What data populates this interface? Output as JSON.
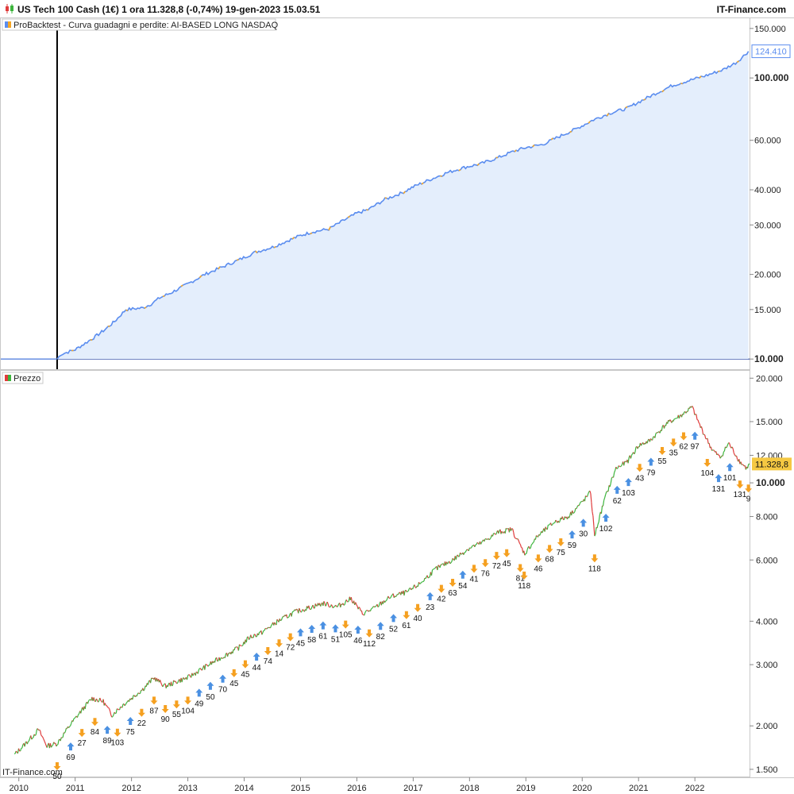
{
  "header": {
    "title": "US Tech 100 Cash (1€) 1 ora 11.328,8 (-0,74%) 19-gen-2023 15.03.51",
    "brand": "IT-Finance.com",
    "icon": "candlestick-icon"
  },
  "watermark": "IT-Finance.com",
  "colors": {
    "equity_line": "#5b8def",
    "equity_line_alt": "#f5a623",
    "equity_fill": "#e4eefc",
    "baseline": "#1f3fa0",
    "price_up": "#3db53d",
    "price_down": "#e03c3c",
    "buy_marker": "#4a90e2",
    "sell_marker": "#f5a020",
    "last_price_badge": "#f5c842"
  },
  "chart_data": [
    {
      "type": "area",
      "legend": "ProBacktest - Curva guadagni e perdite: AI-BASED LONG NASDAQ",
      "yscale": "log",
      "ylim": [
        9200,
        162000
      ],
      "y_ticks": [
        {
          "value": 150000,
          "label": "150.000",
          "bold": false
        },
        {
          "value": 100000,
          "label": "100.000",
          "bold": true
        },
        {
          "value": 60000,
          "label": "60.000",
          "bold": false
        },
        {
          "value": 40000,
          "label": "40.000",
          "bold": false
        },
        {
          "value": 30000,
          "label": "30.000",
          "bold": false
        },
        {
          "value": 20000,
          "label": "20.000",
          "bold": false
        },
        {
          "value": 15000,
          "label": "15.000",
          "bold": false
        },
        {
          "value": 10000,
          "label": "10.000",
          "bold": true
        }
      ],
      "last_value": {
        "value": 124410,
        "label": "124.410"
      },
      "baseline": 10000,
      "start_marker": 2010.68,
      "x": [
        2009.9,
        2010.68,
        2010.75,
        2011.0,
        2011.3,
        2011.5,
        2011.7,
        2011.9,
        2012.2,
        2012.35,
        2012.5,
        2012.7,
        2013.0,
        2013.3,
        2013.6,
        2013.9,
        2014.2,
        2014.5,
        2014.8,
        2015.0,
        2015.2,
        2015.5,
        2015.75,
        2016.0,
        2016.2,
        2016.5,
        2016.8,
        2017.0,
        2017.3,
        2017.6,
        2017.9,
        2018.2,
        2018.5,
        2018.8,
        2019.0,
        2019.3,
        2019.6,
        2019.9,
        2020.2,
        2020.5,
        2020.8,
        2021.0,
        2021.3,
        2021.6,
        2021.9,
        2022.2,
        2022.5,
        2022.75,
        2022.95
      ],
      "y": [
        10000,
        10000,
        10400,
        10800,
        11800,
        12600,
        13600,
        15000,
        15200,
        15700,
        16500,
        17200,
        18500,
        20000,
        21200,
        22500,
        24000,
        25000,
        26500,
        27500,
        28300,
        29000,
        31000,
        33000,
        34000,
        37000,
        39000,
        41000,
        43500,
        46000,
        48000,
        49500,
        52000,
        55000,
        56500,
        58000,
        62000,
        66000,
        71000,
        75000,
        78000,
        82000,
        88000,
        94000,
        98000,
        102000,
        107000,
        114000,
        124410
      ]
    },
    {
      "type": "line",
      "legend": "Prezzo",
      "yscale": "log",
      "ylim": [
        1430,
        21000
      ],
      "y_ticks": [
        {
          "value": 20000,
          "label": "20.000",
          "bold": false
        },
        {
          "value": 15000,
          "label": "15.000",
          "bold": false
        },
        {
          "value": 12000,
          "label": "12.000",
          "bold": false
        },
        {
          "value": 10000,
          "label": "10.000",
          "bold": true
        },
        {
          "value": 8000,
          "label": "8.000",
          "bold": false
        },
        {
          "value": 6000,
          "label": "6.000",
          "bold": false
        },
        {
          "value": 4000,
          "label": "4.000",
          "bold": false
        },
        {
          "value": 3000,
          "label": "3.000",
          "bold": false
        },
        {
          "value": 2000,
          "label": "2.000",
          "bold": false
        },
        {
          "value": 1500,
          "label": "1.500",
          "bold": false
        }
      ],
      "last_value": {
        "value": 11328.8,
        "label": "11.328,8"
      },
      "x": [
        2009.92,
        2010.15,
        2010.35,
        2010.5,
        2010.68,
        2010.9,
        2011.1,
        2011.3,
        2011.5,
        2011.65,
        2011.85,
        2012.2,
        2012.4,
        2012.6,
        2012.85,
        2013.0,
        2013.3,
        2013.6,
        2013.9,
        2014.1,
        2014.3,
        2014.6,
        2014.9,
        2015.1,
        2015.4,
        2015.65,
        2015.9,
        2016.1,
        2016.3,
        2016.6,
        2016.9,
        2017.1,
        2017.4,
        2017.7,
        2018.0,
        2018.2,
        2018.5,
        2018.75,
        2018.98,
        2019.2,
        2019.5,
        2019.75,
        2020.0,
        2020.15,
        2020.22,
        2020.4,
        2020.6,
        2020.8,
        2021.0,
        2021.2,
        2021.5,
        2021.75,
        2021.95,
        2022.1,
        2022.3,
        2022.45,
        2022.6,
        2022.8,
        2022.92,
        2022.97
      ],
      "y": [
        1650,
        1800,
        1950,
        1750,
        1780,
        2000,
        2200,
        2400,
        2350,
        2150,
        2300,
        2550,
        2750,
        2600,
        2700,
        2750,
        2950,
        3150,
        3350,
        3600,
        3700,
        4000,
        4250,
        4350,
        4500,
        4400,
        4650,
        4200,
        4350,
        4700,
        4850,
        5100,
        5650,
        6000,
        6500,
        6700,
        7200,
        7350,
        6250,
        7000,
        7700,
        8000,
        8800,
        9400,
        7050,
        9000,
        11000,
        11500,
        12800,
        13200,
        14800,
        15600,
        16500,
        14500,
        12500,
        11800,
        13000,
        11500,
        11000,
        11328.8
      ],
      "signals": [
        {
          "x": 2010.68,
          "dir": "sell",
          "label": "50"
        },
        {
          "x": 2010.92,
          "dir": "buy",
          "label": "69"
        },
        {
          "x": 2011.12,
          "dir": "sell",
          "label": "27"
        },
        {
          "x": 2011.35,
          "dir": "sell",
          "label": "84"
        },
        {
          "x": 2011.57,
          "dir": "buy",
          "label": "89"
        },
        {
          "x": 2011.75,
          "dir": "sell",
          "label": "103"
        },
        {
          "x": 2011.98,
          "dir": "buy",
          "label": "75"
        },
        {
          "x": 2012.18,
          "dir": "sell",
          "label": "22"
        },
        {
          "x": 2012.4,
          "dir": "sell",
          "label": "87"
        },
        {
          "x": 2012.6,
          "dir": "sell",
          "label": "90"
        },
        {
          "x": 2012.8,
          "dir": "sell",
          "label": "55"
        },
        {
          "x": 2013.0,
          "dir": "sell",
          "label": "104"
        },
        {
          "x": 2013.2,
          "dir": "buy",
          "label": "49"
        },
        {
          "x": 2013.4,
          "dir": "buy",
          "label": "50"
        },
        {
          "x": 2013.62,
          "dir": "buy",
          "label": "70"
        },
        {
          "x": 2013.82,
          "dir": "sell",
          "label": "45"
        },
        {
          "x": 2014.02,
          "dir": "sell",
          "label": "45"
        },
        {
          "x": 2014.22,
          "dir": "buy",
          "label": "44"
        },
        {
          "x": 2014.42,
          "dir": "sell",
          "label": "74"
        },
        {
          "x": 2014.62,
          "dir": "sell",
          "label": "14"
        },
        {
          "x": 2014.82,
          "dir": "sell",
          "label": "72"
        },
        {
          "x": 2015.0,
          "dir": "buy",
          "label": "45"
        },
        {
          "x": 2015.2,
          "dir": "buy",
          "label": "58"
        },
        {
          "x": 2015.4,
          "dir": "buy",
          "label": "61"
        },
        {
          "x": 2015.62,
          "dir": "buy",
          "label": "51"
        },
        {
          "x": 2015.8,
          "dir": "sell",
          "label": "105"
        },
        {
          "x": 2016.02,
          "dir": "buy",
          "label": "46"
        },
        {
          "x": 2016.22,
          "dir": "sell",
          "label": "112"
        },
        {
          "x": 2016.42,
          "dir": "buy",
          "label": "82"
        },
        {
          "x": 2016.65,
          "dir": "buy",
          "label": "52"
        },
        {
          "x": 2016.88,
          "dir": "sell",
          "label": "61"
        },
        {
          "x": 2017.08,
          "dir": "sell",
          "label": "40"
        },
        {
          "x": 2017.3,
          "dir": "buy",
          "label": "23"
        },
        {
          "x": 2017.5,
          "dir": "sell",
          "label": "42"
        },
        {
          "x": 2017.7,
          "dir": "sell",
          "label": "63"
        },
        {
          "x": 2017.88,
          "dir": "buy",
          "label": "54"
        },
        {
          "x": 2018.08,
          "dir": "sell",
          "label": "41"
        },
        {
          "x": 2018.28,
          "dir": "sell",
          "label": "76"
        },
        {
          "x": 2018.48,
          "dir": "sell",
          "label": "72"
        },
        {
          "x": 2018.66,
          "dir": "sell",
          "label": "45"
        },
        {
          "x": 2018.9,
          "dir": "sell",
          "label": "81"
        },
        {
          "x": 2018.97,
          "dir": "sell",
          "label": "118"
        },
        {
          "x": 2019.22,
          "dir": "sell",
          "label": "46"
        },
        {
          "x": 2019.42,
          "dir": "sell",
          "label": "68"
        },
        {
          "x": 2019.62,
          "dir": "sell",
          "label": "75"
        },
        {
          "x": 2019.82,
          "dir": "buy",
          "label": "59"
        },
        {
          "x": 2020.02,
          "dir": "buy",
          "label": "30"
        },
        {
          "x": 2020.22,
          "dir": "sell",
          "label": "118"
        },
        {
          "x": 2020.42,
          "dir": "buy",
          "label": "102"
        },
        {
          "x": 2020.62,
          "dir": "buy",
          "label": "62"
        },
        {
          "x": 2020.82,
          "dir": "buy",
          "label": "103"
        },
        {
          "x": 2021.02,
          "dir": "sell",
          "label": "43"
        },
        {
          "x": 2021.22,
          "dir": "buy",
          "label": "79"
        },
        {
          "x": 2021.42,
          "dir": "sell",
          "label": "55"
        },
        {
          "x": 2021.62,
          "dir": "sell",
          "label": "35"
        },
        {
          "x": 2021.8,
          "dir": "sell",
          "label": "62"
        },
        {
          "x": 2022.0,
          "dir": "buy",
          "label": "97"
        },
        {
          "x": 2022.22,
          "dir": "sell",
          "label": "104"
        },
        {
          "x": 2022.42,
          "dir": "buy",
          "label": "131"
        },
        {
          "x": 2022.62,
          "dir": "buy",
          "label": "101"
        },
        {
          "x": 2022.8,
          "dir": "sell",
          "label": "131"
        },
        {
          "x": 2022.95,
          "dir": "sell",
          "label": "9"
        }
      ]
    }
  ],
  "x_axis": {
    "xlim": [
      2009.68,
      2022.97
    ],
    "ticks": [
      {
        "value": 2010,
        "label": "2010"
      },
      {
        "value": 2011,
        "label": "2011"
      },
      {
        "value": 2012,
        "label": "2012"
      },
      {
        "value": 2013,
        "label": "2013"
      },
      {
        "value": 2014,
        "label": "2014"
      },
      {
        "value": 2015,
        "label": "2015"
      },
      {
        "value": 2016,
        "label": "2016"
      },
      {
        "value": 2017,
        "label": "2017"
      },
      {
        "value": 2018,
        "label": "2018"
      },
      {
        "value": 2019,
        "label": "2019"
      },
      {
        "value": 2020,
        "label": "2020"
      },
      {
        "value": 2021,
        "label": "2021"
      },
      {
        "value": 2022,
        "label": "2022"
      }
    ]
  }
}
